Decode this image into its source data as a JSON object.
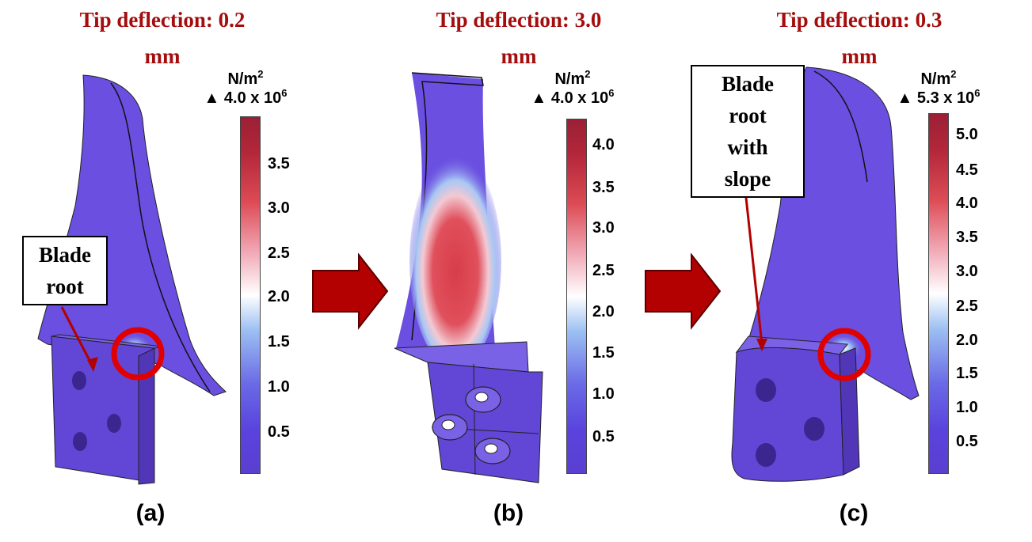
{
  "panels": [
    {
      "title_line1": "Tip deflection: 0.2",
      "title_line2": "mm",
      "unit": "N/m",
      "unit_sup": "2",
      "max_label": "4.0 x 10",
      "max_sup": "6",
      "ticks": [
        "3.5",
        "3.0",
        "2.5",
        "2.0",
        "1.5",
        "1.0",
        "0.5"
      ],
      "callout_lines": [
        "Blade",
        "root"
      ],
      "caption": "(a)"
    },
    {
      "title_line1": "Tip deflection: 3.0",
      "title_line2": "mm",
      "unit": "N/m",
      "unit_sup": "2",
      "max_label": "4.0 x 10",
      "max_sup": "6",
      "ticks": [
        "4.0",
        "3.5",
        "3.0",
        "2.5",
        "2.0",
        "1.5",
        "1.0",
        "0.5"
      ],
      "caption": "(b)"
    },
    {
      "title_line1": "Tip deflection: 0.3",
      "title_line2": "mm",
      "unit": "N/m",
      "unit_sup": "2",
      "max_label": "5.3 x 10",
      "max_sup": "6",
      "ticks": [
        "5.0",
        "4.5",
        "4.0",
        "3.5",
        "3.0",
        "2.5",
        "2.0",
        "1.5",
        "1.0",
        "0.5"
      ],
      "callout_lines": [
        "Blade",
        "root",
        "with",
        "slope"
      ],
      "caption": "(c)"
    }
  ],
  "colors": {
    "title": "#a50d0d",
    "arrow": "#b30000",
    "blade": "#6a4fe0",
    "highlight_circle": "#e00000"
  },
  "icons": [
    "triangle-up-icon",
    "right-arrow-icon"
  ]
}
